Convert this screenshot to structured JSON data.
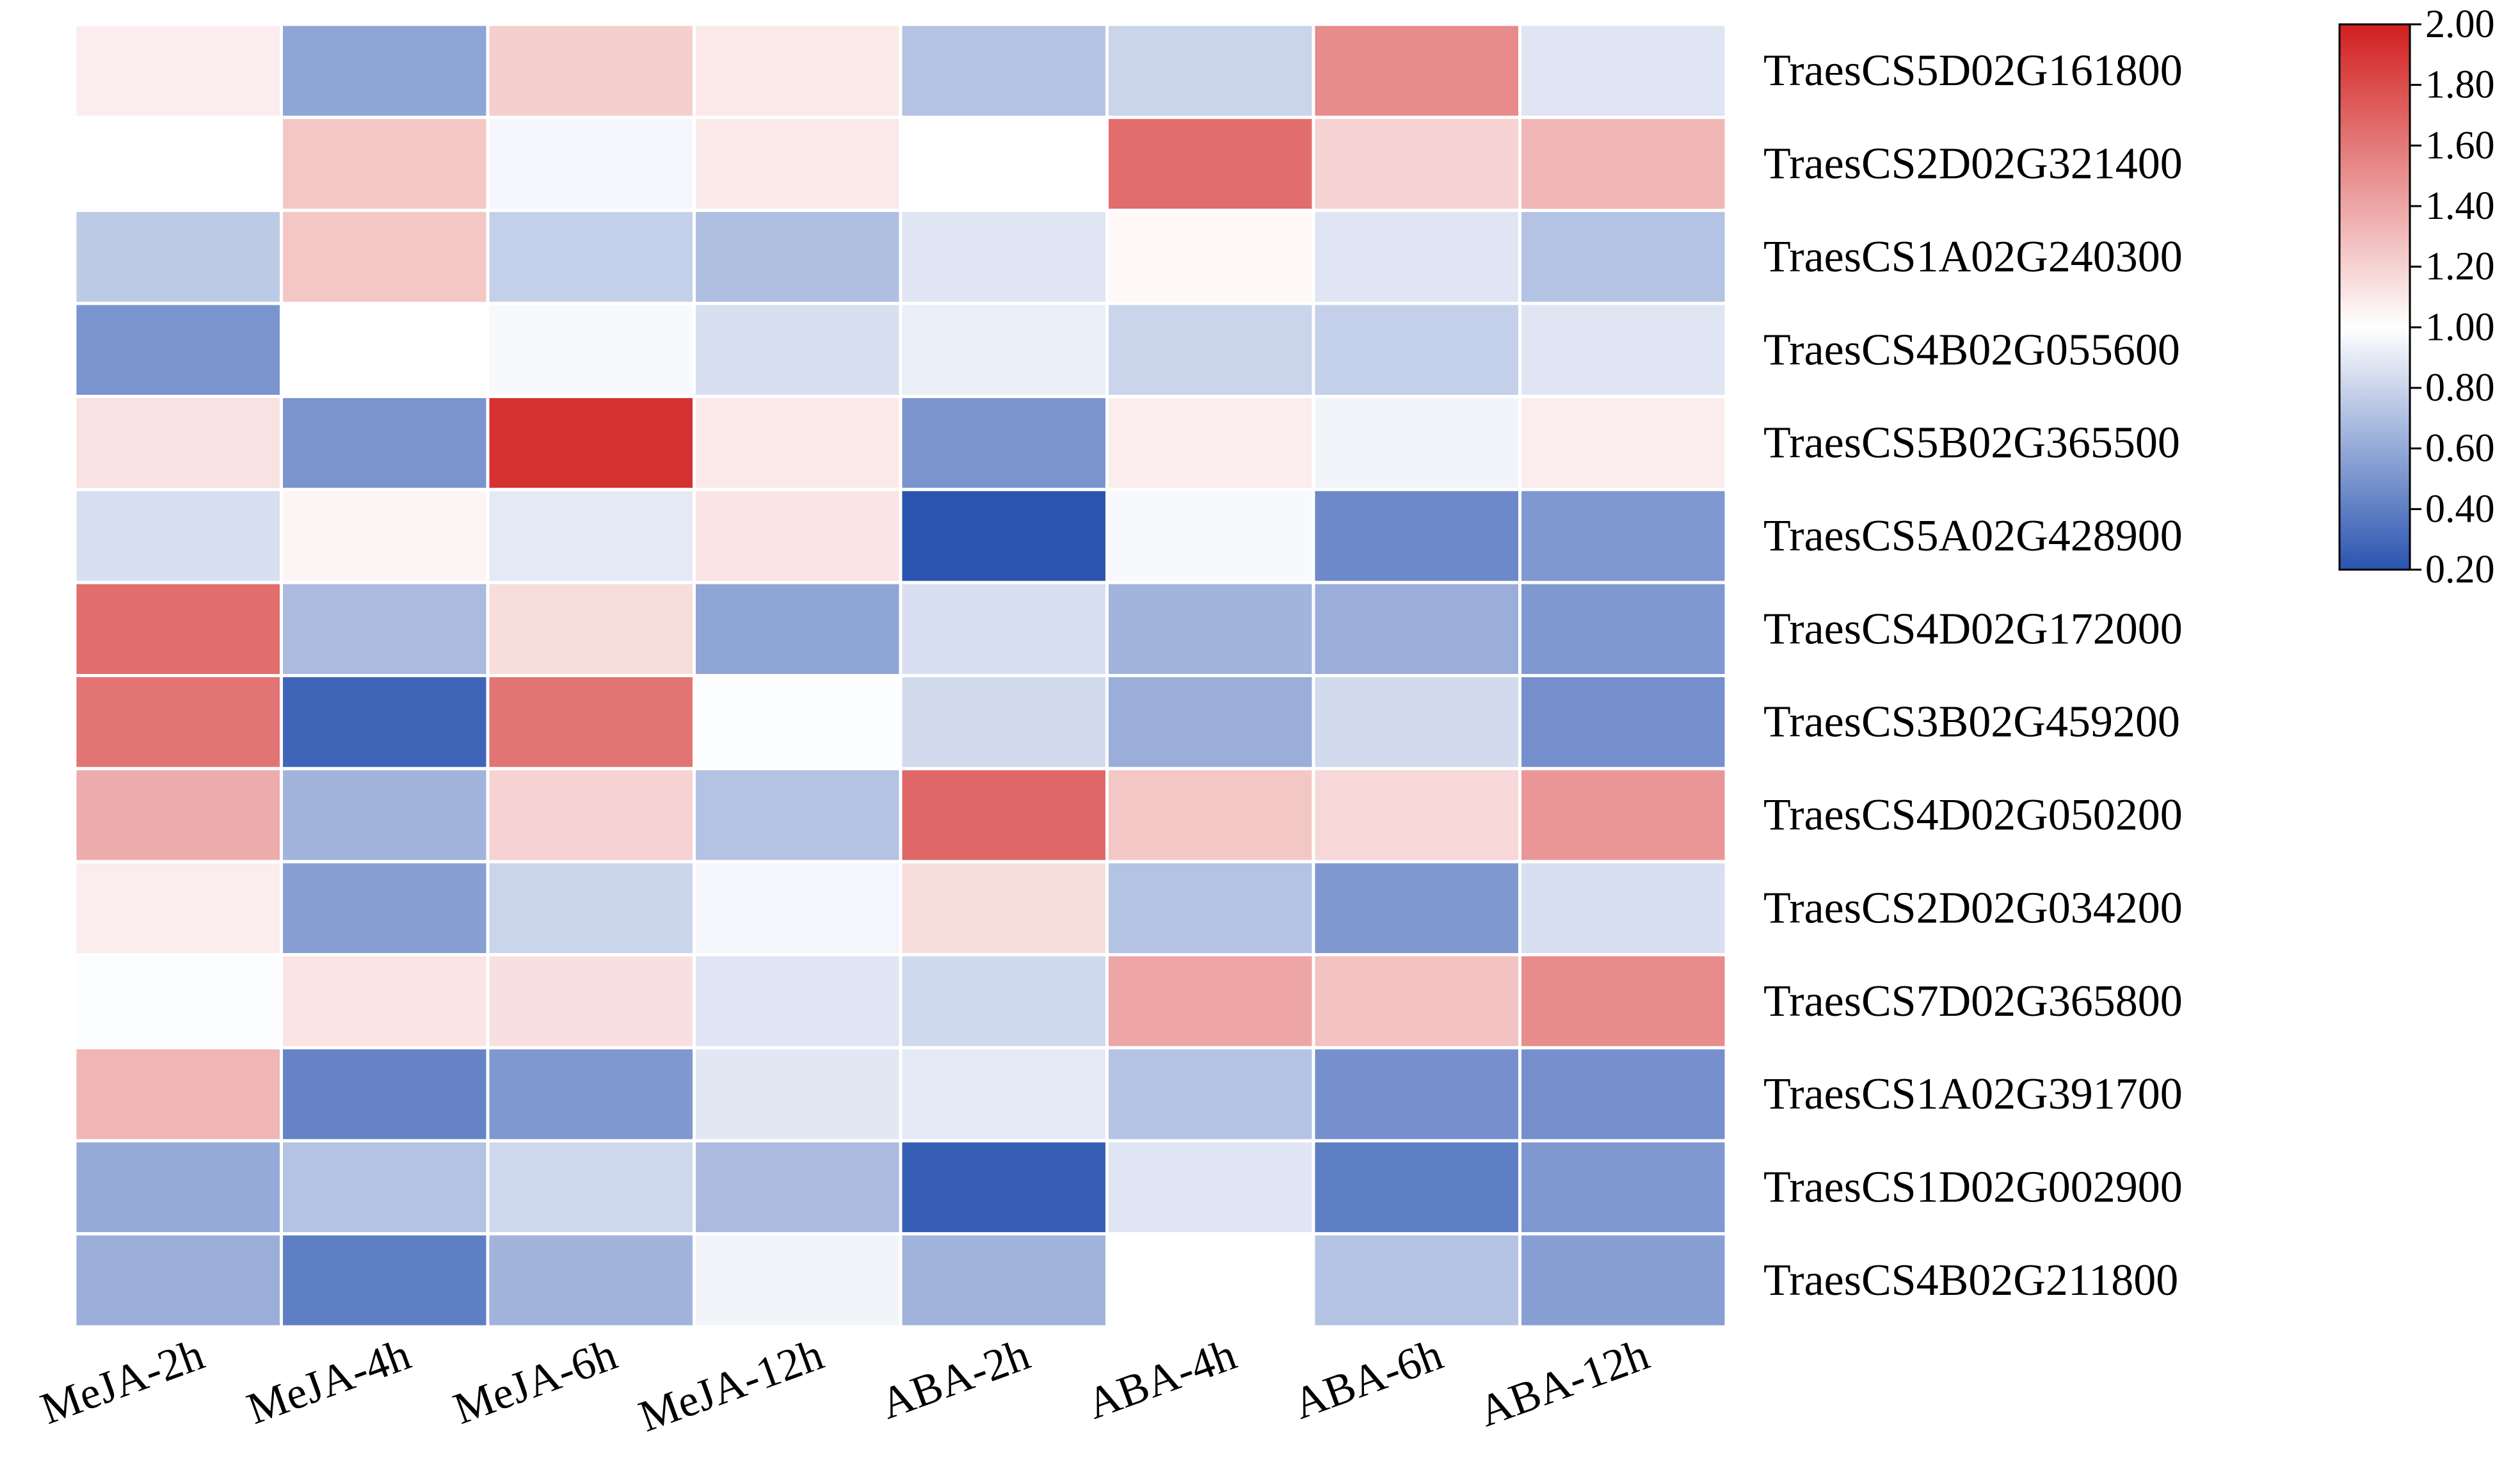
{
  "chart_data": {
    "type": "heatmap",
    "title": "",
    "rows": [
      "TraesCS5D02G161800",
      "TraesCS2D02G321400",
      "TraesCS1A02G240300",
      "TraesCS4B02G055600",
      "TraesCS5B02G365500",
      "TraesCS5A02G428900",
      "TraesCS4D02G172000",
      "TraesCS3B02G459200",
      "TraesCS4D02G050200",
      "TraesCS2D02G034200",
      "TraesCS7D02G365800",
      "TraesCS1A02G391700",
      "TraesCS1D02G002900",
      "TraesCS4B02G211800"
    ],
    "columns": [
      "MeJA-2h",
      "MeJA-4h",
      "MeJA-6h",
      "MeJA-12h",
      "ABA-2h",
      "ABA-4h",
      "ABA-6h",
      "ABA-12h"
    ],
    "values": [
      [
        1.08,
        0.58,
        1.22,
        1.1,
        0.72,
        0.8,
        1.52,
        0.88
      ],
      [
        1.0,
        1.25,
        0.96,
        1.1,
        1.0,
        1.65,
        1.2,
        1.32
      ],
      [
        0.75,
        1.25,
        0.78,
        0.7,
        0.88,
        1.03,
        0.88,
        0.72
      ],
      [
        0.5,
        1.0,
        0.97,
        0.85,
        0.92,
        0.8,
        0.78,
        0.88
      ],
      [
        1.13,
        0.5,
        1.92,
        1.1,
        0.5,
        1.08,
        0.95,
        1.08
      ],
      [
        0.85,
        1.05,
        0.9,
        1.12,
        0.2,
        0.97,
        0.45,
        0.52
      ],
      [
        1.65,
        0.68,
        1.15,
        0.58,
        0.85,
        0.65,
        0.62,
        0.52
      ],
      [
        1.62,
        0.28,
        1.62,
        0.99,
        0.83,
        0.62,
        0.83,
        0.48
      ],
      [
        1.37,
        0.65,
        1.2,
        0.72,
        1.68,
        1.25,
        1.18,
        1.47
      ],
      [
        1.08,
        0.55,
        0.8,
        0.96,
        1.15,
        0.72,
        0.52,
        0.85
      ],
      [
        0.99,
        1.12,
        1.14,
        0.88,
        0.82,
        1.4,
        1.27,
        1.52
      ],
      [
        1.33,
        0.42,
        0.52,
        0.89,
        0.9,
        0.72,
        0.48,
        0.48
      ],
      [
        0.6,
        0.72,
        0.82,
        0.68,
        0.25,
        0.88,
        0.4,
        0.52
      ],
      [
        0.62,
        0.4,
        0.65,
        0.95,
        0.65,
        1.0,
        0.72,
        0.55
      ]
    ],
    "colorbar": {
      "range": [
        0.2,
        2.0
      ],
      "ticks": [
        "2.00",
        "1.80",
        "1.60",
        "1.40",
        "1.20",
        "1.00",
        "0.80",
        "0.60",
        "0.40",
        "0.20"
      ],
      "colors": {
        "low": "#2a54b0",
        "mid": "#ffffff",
        "high": "#d21f1f"
      }
    },
    "grid": false,
    "legend": "top-right colorbar"
  }
}
